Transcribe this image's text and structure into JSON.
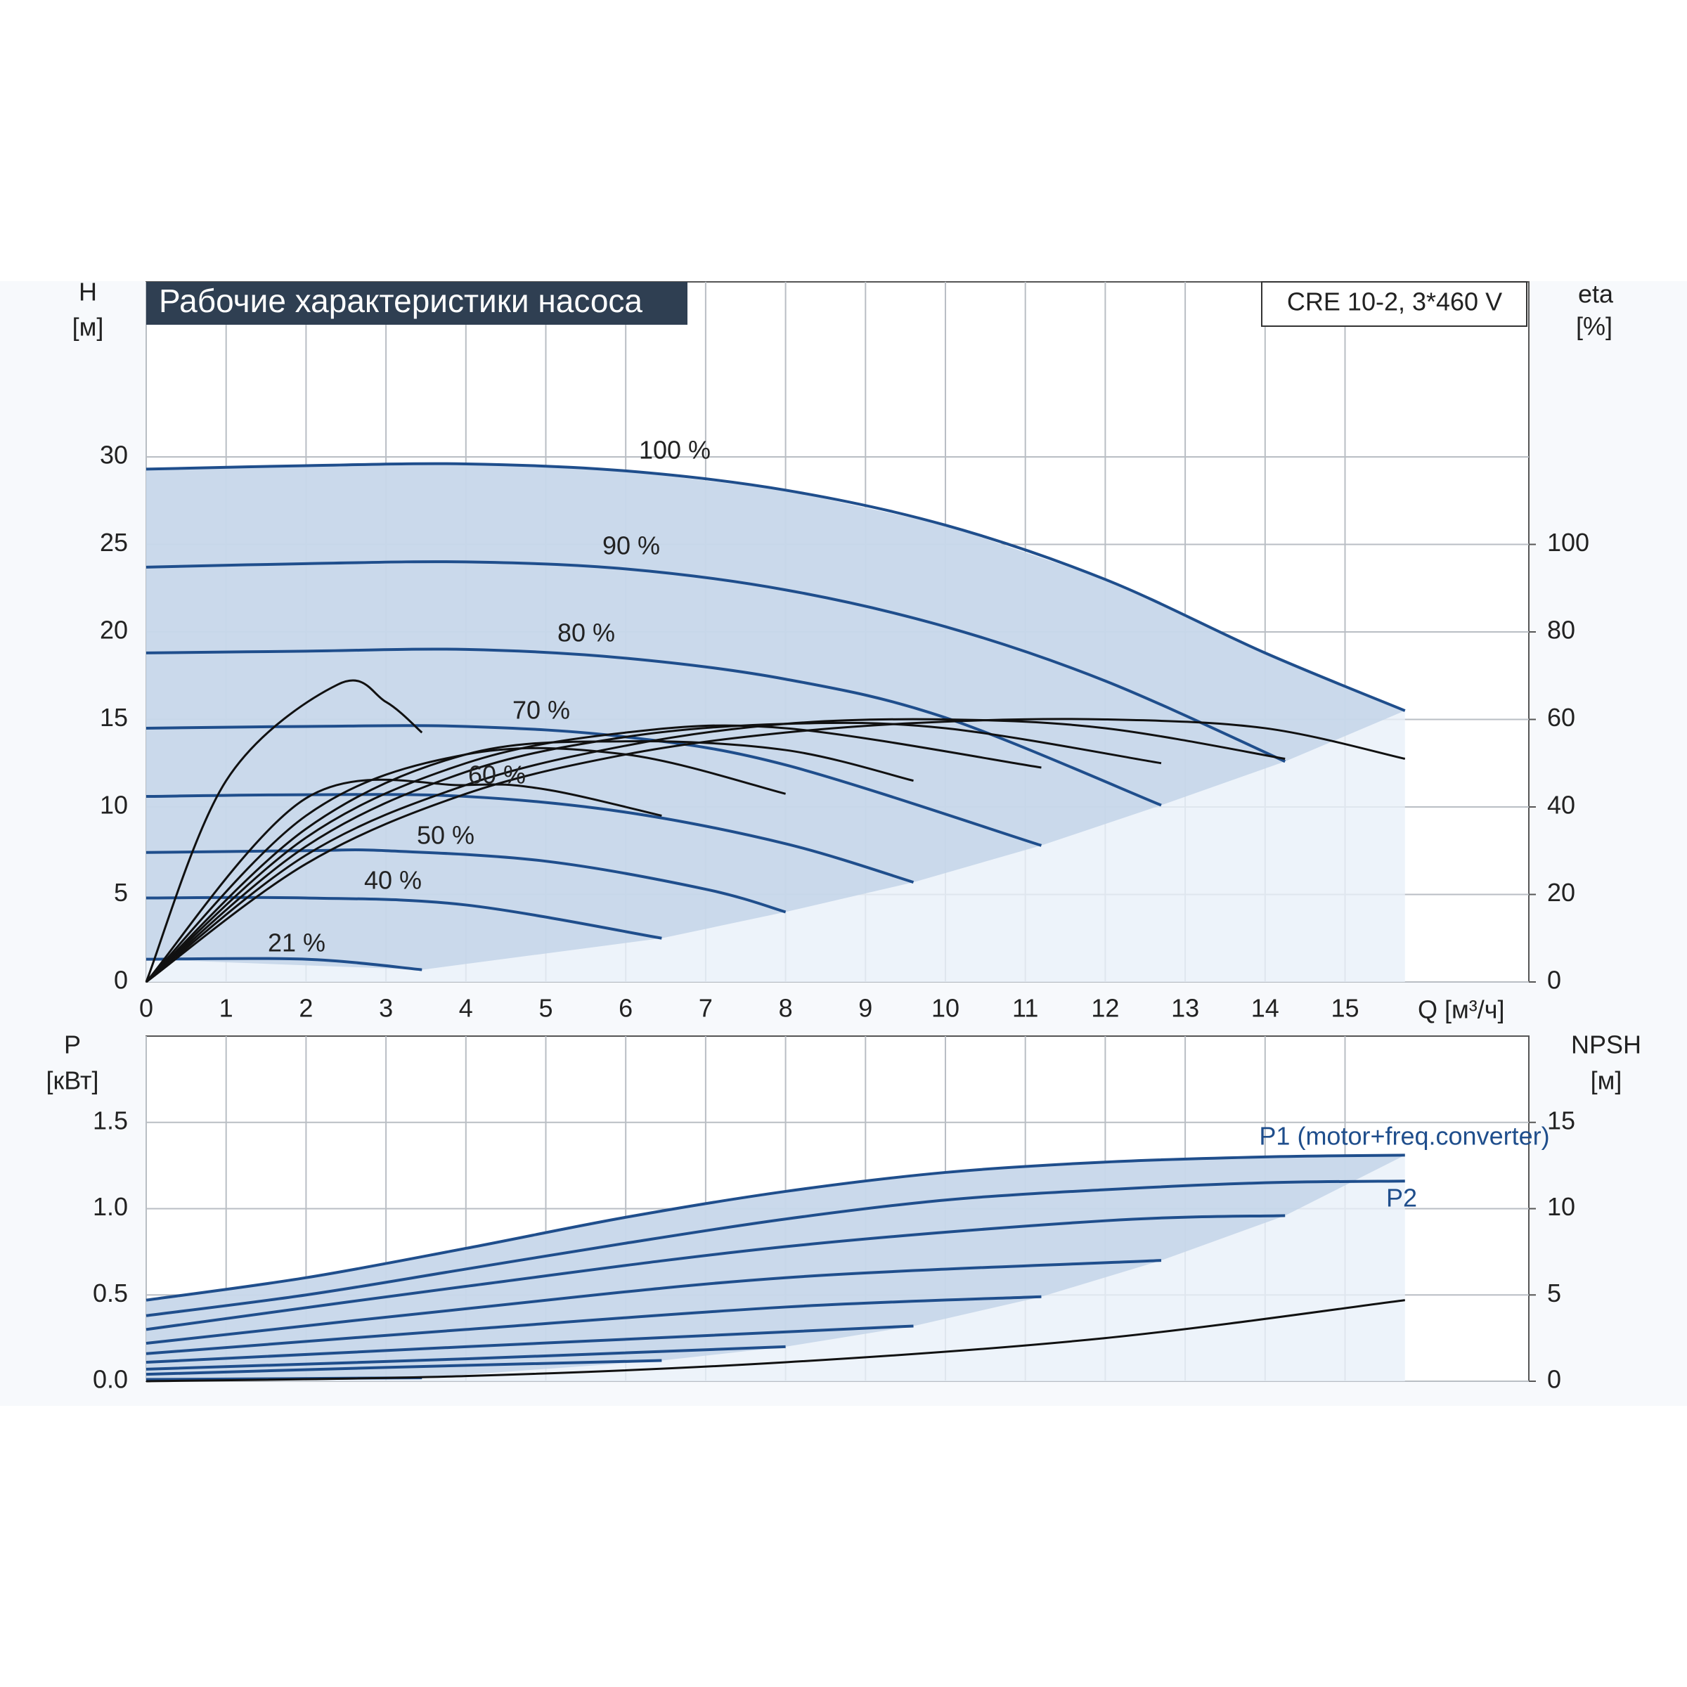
{
  "chart_data": [
    {
      "type": "line",
      "title": "Рабочие характеристики насоса",
      "subtitle": "CRE 10-2, 3*460 V",
      "ylabel": [
        "H",
        "[м]"
      ],
      "y2label": [
        "eta",
        "[%]"
      ],
      "xlabel": "Q [м³/ч]",
      "xlim": [
        0,
        17.3
      ],
      "ylim": [
        0,
        40
      ],
      "y2lim": [
        0,
        160
      ],
      "xticks": [
        0,
        1,
        2,
        3,
        4,
        5,
        6,
        7,
        8,
        9,
        10,
        11,
        12,
        13,
        14,
        15
      ],
      "yticks": [
        0,
        5,
        10,
        15,
        20,
        25,
        30
      ],
      "y2ticks": [
        0,
        20,
        40,
        60,
        80,
        100
      ],
      "grid": true,
      "series": [
        {
          "name": "100 %",
          "color": "#1f4e8c",
          "x": [
            0,
            2,
            4,
            6,
            8,
            10,
            12,
            14,
            15.75
          ],
          "values": [
            29.3,
            29.5,
            29.6,
            29.2,
            28.1,
            26.1,
            23,
            18.8,
            15.5
          ]
        },
        {
          "name": "90 %",
          "color": "#1f4e8c",
          "x": [
            0,
            2,
            4,
            6,
            8,
            10,
            12,
            14.25
          ],
          "values": [
            23.7,
            23.9,
            24,
            23.6,
            22.4,
            20.3,
            17.2,
            12.6
          ]
        },
        {
          "name": "80 %",
          "color": "#1f4e8c",
          "x": [
            0,
            2,
            4,
            6,
            8,
            10,
            12.7
          ],
          "values": [
            18.8,
            18.9,
            19,
            18.5,
            17.3,
            15.1,
            10.1
          ]
        },
        {
          "name": "70 %",
          "color": "#1f4e8c",
          "x": [
            0,
            2,
            4,
            6,
            8,
            11.2
          ],
          "values": [
            14.5,
            14.6,
            14.6,
            14,
            12.4,
            7.8
          ]
        },
        {
          "name": "60 %",
          "color": "#1f4e8c",
          "x": [
            0,
            2,
            4,
            6,
            8,
            9.6
          ],
          "values": [
            10.6,
            10.7,
            10.6,
            9.7,
            7.9,
            5.7
          ]
        },
        {
          "name": "50 %",
          "color": "#1f4e8c",
          "x": [
            0,
            2,
            3,
            5,
            7,
            8
          ],
          "values": [
            7.4,
            7.5,
            7.5,
            6.9,
            5.3,
            4
          ]
        },
        {
          "name": "40 %",
          "color": "#1f4e8c",
          "x": [
            0,
            2,
            4,
            6.45
          ],
          "values": [
            4.8,
            4.8,
            4.4,
            2.5
          ]
        },
        {
          "name": "21 %",
          "color": "#1f4e8c",
          "x": [
            0,
            2,
            3.45
          ],
          "values": [
            1.3,
            1.3,
            0.7
          ]
        },
        {
          "color": "#111111",
          "axis": "y2",
          "x": [
            0,
            2,
            4,
            6,
            8,
            10,
            12,
            14,
            15.75
          ],
          "values": [
            0,
            27,
            43,
            52,
            57,
            59.5,
            60,
            58,
            51
          ]
        },
        {
          "color": "#111111",
          "axis": "y2",
          "x": [
            0,
            2,
            4,
            6,
            8,
            10,
            12,
            14.25
          ],
          "values": [
            0,
            29,
            45,
            54,
            59,
            60,
            58,
            51
          ]
        },
        {
          "color": "#111111",
          "axis": "y2",
          "x": [
            0,
            2,
            4,
            6,
            8,
            10,
            12.7
          ],
          "values": [
            0,
            31,
            48,
            56,
            59,
            58,
            50
          ]
        },
        {
          "color": "#111111",
          "axis": "y2",
          "x": [
            0,
            2,
            4,
            6,
            8,
            11.2
          ],
          "values": [
            0,
            33,
            50,
            57,
            58,
            49
          ]
        },
        {
          "color": "#111111",
          "axis": "y2",
          "x": [
            0,
            2,
            4,
            6,
            8,
            9.6
          ],
          "values": [
            0,
            35,
            52,
            55,
            53,
            46
          ]
        },
        {
          "color": "#111111",
          "axis": "y2",
          "x": [
            0,
            2,
            4,
            6,
            8
          ],
          "values": [
            0,
            38,
            52,
            52,
            43
          ]
        },
        {
          "color": "#111111",
          "axis": "y2",
          "x": [
            0,
            2,
            4,
            5,
            6.45
          ],
          "values": [
            0,
            42,
            45,
            44,
            38
          ]
        },
        {
          "color": "#111111",
          "axis": "y2",
          "x": [
            0,
            1,
            2.4,
            3,
            3.45
          ],
          "values": [
            0,
            46,
            68,
            64,
            57
          ]
        }
      ]
    },
    {
      "type": "line",
      "ylabel": [
        "P",
        "[кВт]"
      ],
      "y2label": [
        "NPSH",
        "[м]"
      ],
      "xlim": [
        0,
        17.3
      ],
      "ylim": [
        0,
        2
      ],
      "y2lim": [
        0,
        20
      ],
      "yticks": [
        {
          "value": 0,
          "label": "0.0"
        },
        0.5,
        {
          "value": 1,
          "label": "1.0"
        },
        1.5
      ],
      "y2ticks": [
        0,
        5,
        10,
        15
      ],
      "grid": true,
      "series": [
        {
          "name": "P1 (motor+freq.converter)",
          "color": "#1f4e8c",
          "x": [
            0,
            2,
            4,
            6,
            8,
            10,
            12,
            14,
            15.75
          ],
          "values": [
            0.47,
            0.6,
            0.77,
            0.95,
            1.1,
            1.21,
            1.27,
            1.3,
            1.31
          ]
        },
        {
          "name": "P2",
          "color": "#1f4e8c",
          "x": [
            0,
            2,
            4,
            6,
            8,
            10,
            12,
            14,
            15.75
          ],
          "values": [
            0.38,
            0.5,
            0.65,
            0.8,
            0.94,
            1.05,
            1.11,
            1.15,
            1.16
          ]
        },
        {
          "color": "#1f4e8c",
          "x": [
            0,
            4,
            8,
            12,
            14.25
          ],
          "values": [
            0.3,
            0.55,
            0.78,
            0.93,
            0.96
          ]
        },
        {
          "color": "#1f4e8c",
          "x": [
            0,
            4,
            8,
            12.7
          ],
          "values": [
            0.22,
            0.42,
            0.6,
            0.7
          ]
        },
        {
          "color": "#1f4e8c",
          "x": [
            0,
            4,
            8,
            11.2
          ],
          "values": [
            0.16,
            0.3,
            0.43,
            0.49
          ]
        },
        {
          "color": "#1f4e8c",
          "x": [
            0,
            4,
            9.6
          ],
          "values": [
            0.11,
            0.2,
            0.32
          ]
        },
        {
          "color": "#1f4e8c",
          "x": [
            0,
            4,
            8
          ],
          "values": [
            0.07,
            0.13,
            0.2
          ]
        },
        {
          "color": "#1f4e8c",
          "x": [
            0,
            3,
            6.45
          ],
          "values": [
            0.04,
            0.08,
            0.12
          ]
        },
        {
          "color": "#1f4e8c",
          "x": [
            0,
            3.45
          ],
          "values": [
            0.01,
            0.02
          ]
        },
        {
          "color": "#111111",
          "axis": "y2",
          "x": [
            0,
            4,
            8,
            12,
            15.75
          ],
          "values": [
            0,
            0.3,
            1.1,
            2.5,
            4.7
          ]
        }
      ]
    }
  ]
}
